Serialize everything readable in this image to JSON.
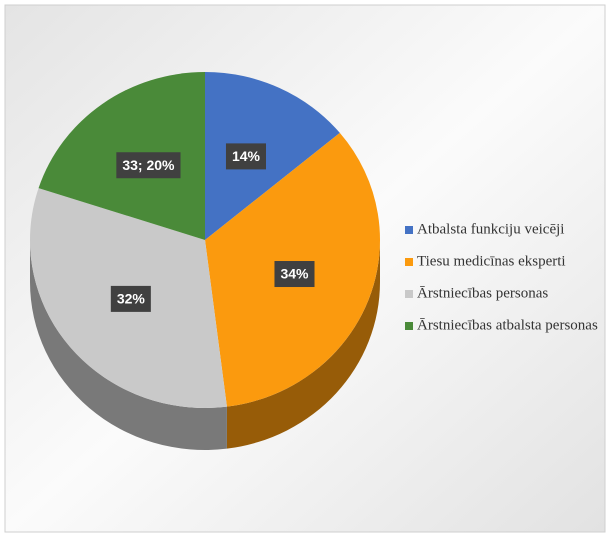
{
  "chart_data": {
    "type": "pie",
    "categories": [
      "Atbalsta funkciju veicēji",
      "Tiesu medicīnas eksperti",
      "Ārstniecības personas",
      "Ārstniecības atbalsta personas"
    ],
    "values": [
      14,
      34,
      32,
      20
    ],
    "value_labels": [
      "14%",
      "34%",
      "32%",
      "33; 20%"
    ],
    "colors": [
      "#4472c4",
      "#fb9a0e",
      "#c9c9c9",
      "#4a8a39"
    ],
    "legend": "right"
  }
}
